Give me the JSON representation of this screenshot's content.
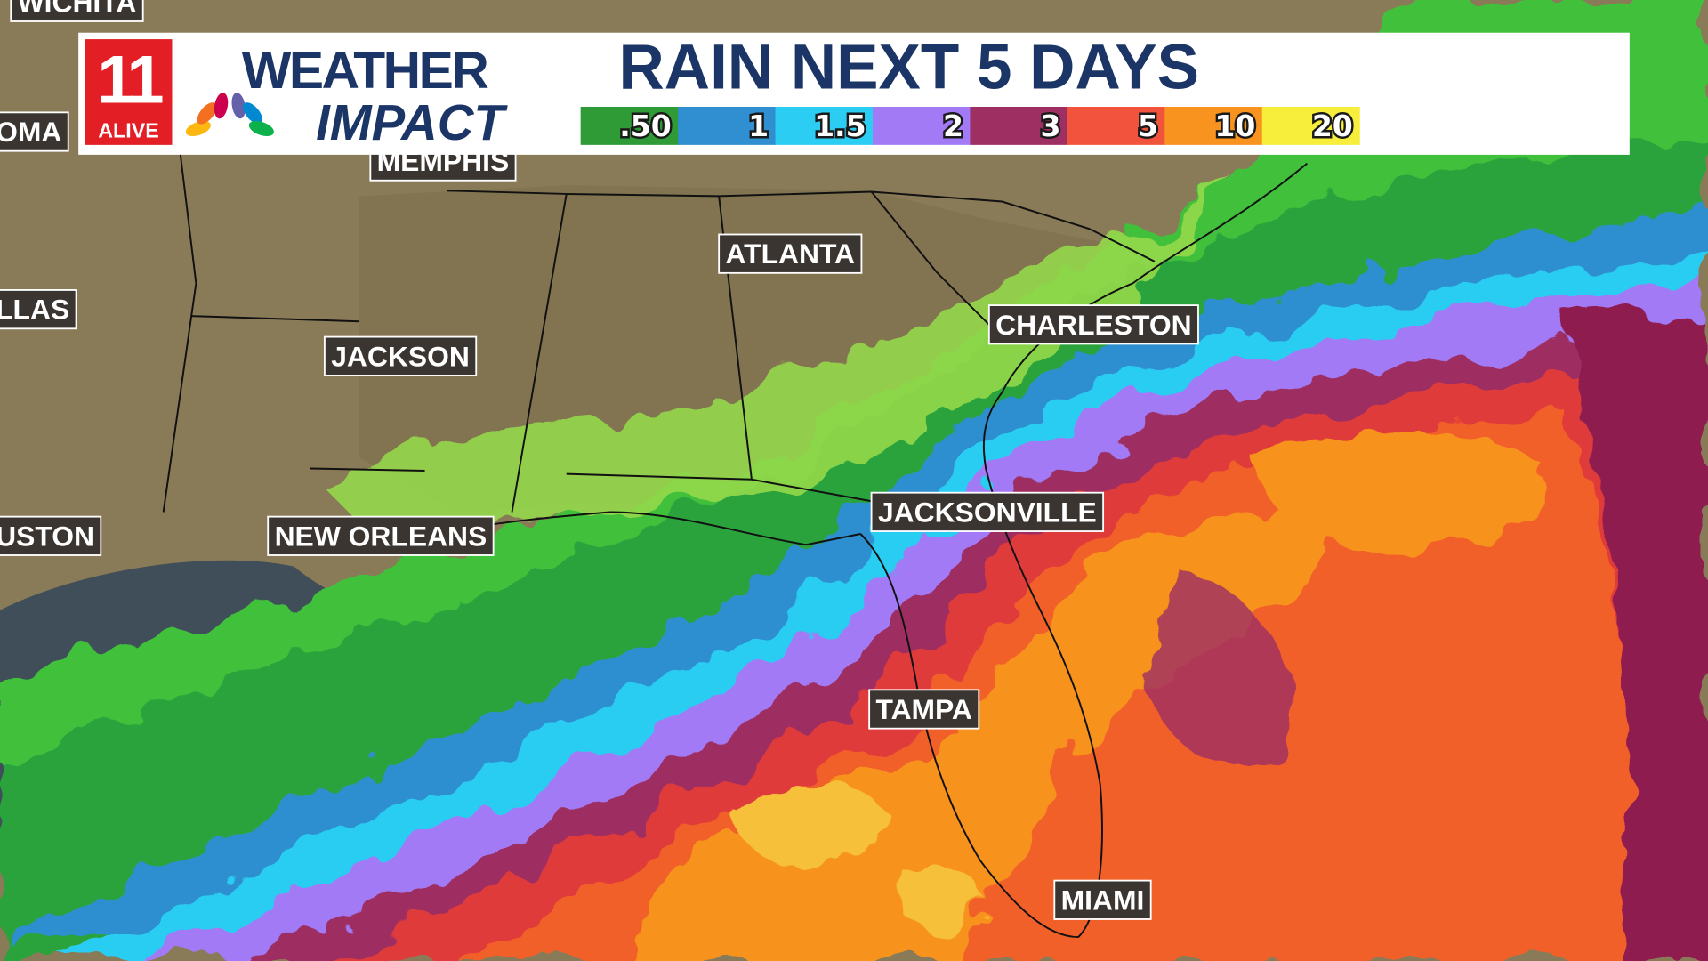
{
  "header": {
    "station_number": "11",
    "station_name": "ALIVE",
    "brand_line1": "WEATHER",
    "brand_line2": "IMPACT",
    "title": "RAIN NEXT 5 DAYS"
  },
  "legend": {
    "items": [
      {
        "label": ".50",
        "color": "#2f9b36"
      },
      {
        "label": "1",
        "color": "#2f8fd0"
      },
      {
        "label": "1.5",
        "color": "#2ccdf2"
      },
      {
        "label": "2",
        "color": "#a27af5"
      },
      {
        "label": "3",
        "color": "#9e2f62"
      },
      {
        "label": "5",
        "color": "#f2533d"
      },
      {
        "label": "10",
        "color": "#f7931e"
      },
      {
        "label": "20",
        "color": "#f6ee3a"
      }
    ]
  },
  "cities": [
    "WICHITA",
    "OMA",
    "MEMPHIS",
    "LLAS",
    "ATLANTA",
    "CHARLESTON",
    "JACKSON",
    "USTON",
    "NEW ORLEANS",
    "JACKSONVILLE",
    "TAMPA",
    "MIAMI"
  ]
}
